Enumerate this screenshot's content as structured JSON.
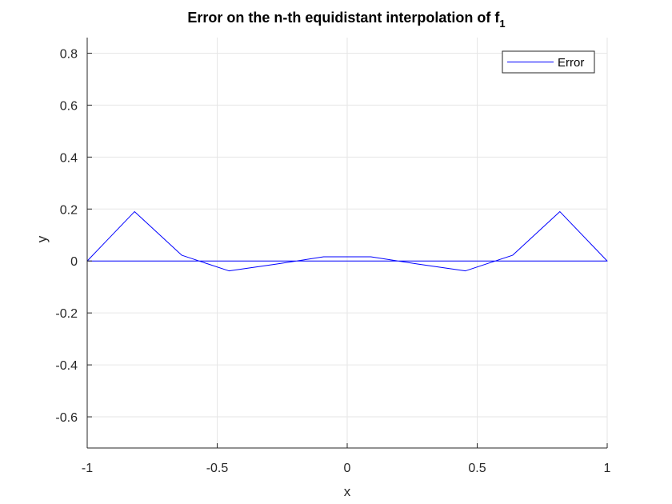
{
  "chart_data": {
    "type": "line",
    "title": "Error on the n-th equidistant interpolation of f",
    "title_subscript": "1",
    "xlabel": "x",
    "ylabel": "y",
    "xlim": [
      -1,
      1
    ],
    "ylim": [
      -0.72,
      0.86
    ],
    "x_ticks": [
      -1,
      -0.5,
      0,
      0.5,
      1
    ],
    "x_tick_labels": [
      "-1",
      "-0.5",
      "0",
      "0.5",
      "1"
    ],
    "y_ticks": [
      -0.6,
      -0.4,
      -0.2,
      0,
      0.2,
      0.4,
      0.6,
      0.8
    ],
    "y_tick_labels": [
      "-0.6",
      "-0.4",
      "-0.2",
      "0",
      "0.2",
      "0.4",
      "0.6",
      "0.8"
    ],
    "grid": true,
    "legend_position": "top-right",
    "series_color": "#0000ff",
    "series": [
      {
        "name": "Error",
        "x": [
          -1,
          -0.818,
          -0.636,
          -0.455,
          -0.273,
          -0.091,
          0.091,
          0.273,
          0.455,
          0.636,
          0.818,
          1,
          0.818,
          0.636,
          0.455,
          0.273,
          0.091,
          -0.091,
          -0.273,
          -0.455,
          -0.636,
          -0.818,
          -1
        ],
        "y": [
          0,
          0.19,
          0.022,
          -0.038,
          -0.012,
          0.016,
          0.016,
          -0.012,
          -0.038,
          0.022,
          0.19,
          0,
          0,
          0,
          0,
          0,
          0,
          0,
          0,
          0,
          0,
          0,
          0
        ]
      }
    ]
  }
}
